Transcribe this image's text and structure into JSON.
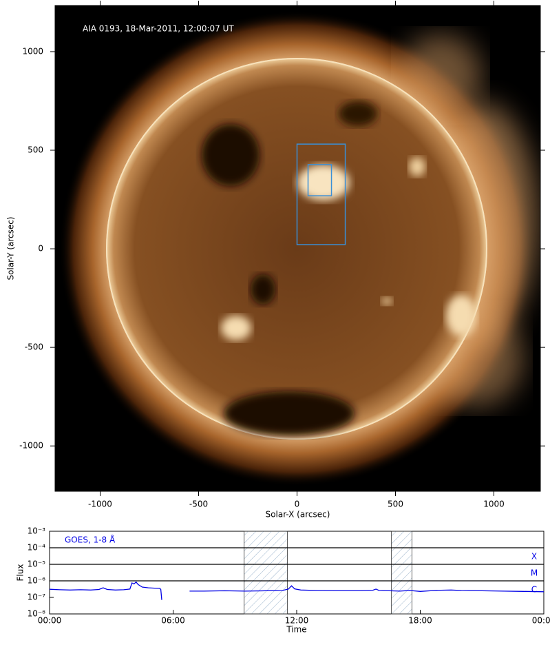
{
  "chart_data": [
    {
      "type": "image",
      "annotation": "AIA 0193, 18-Mar-2011, 12:00:07 UT",
      "xlabel": "Solar-X (arcsec)",
      "ylabel": "Solar-Y (arcsec)",
      "xlim": [
        -1229,
        1236
      ],
      "ylim": [
        -1230,
        1234
      ],
      "xticks": [
        -1000,
        -500,
        0,
        500,
        1000
      ],
      "yticks": [
        -1000,
        -500,
        0,
        500,
        1000
      ],
      "boxes": [
        {
          "x": [
            0,
            245
          ],
          "y": [
            21,
            531
          ],
          "color": "#3a8fd6"
        },
        {
          "x": [
            56,
            175
          ],
          "y": [
            269,
            427
          ],
          "color": "#3a8fd6"
        }
      ]
    },
    {
      "type": "line",
      "log_y": true,
      "xlabel": "Time",
      "ylabel": "Flux",
      "xlim": [
        0,
        24
      ],
      "ylim": [
        1e-08,
        0.001
      ],
      "xticks": [
        {
          "value": 0,
          "label": "00:00"
        },
        {
          "value": 6,
          "label": "06:00"
        },
        {
          "value": 12,
          "label": "12:00"
        },
        {
          "value": 18,
          "label": "18:00"
        },
        {
          "value": 24,
          "label": "00:00"
        }
      ],
      "yticks": [
        {
          "value": 1e-08,
          "label": "10⁻⁸"
        },
        {
          "value": 1e-07,
          "label": "10⁻⁷"
        },
        {
          "value": 1e-06,
          "label": "10⁻⁶"
        },
        {
          "value": 1e-05,
          "label": "10⁻⁵"
        },
        {
          "value": 0.0001,
          "label": "10⁻⁴"
        },
        {
          "value": 0.001,
          "label": "10⁻³"
        }
      ],
      "levels": [
        {
          "value": 1e-06,
          "label": "C"
        },
        {
          "value": 1e-05,
          "label": "M"
        },
        {
          "value": 0.0001,
          "label": "X"
        }
      ],
      "shaded": [
        [
          9.45,
          11.55
        ],
        [
          16.6,
          17.6
        ]
      ],
      "series": [
        {
          "name": "GOES, 1-8 Å",
          "color": "#0000e6",
          "x": [
            0,
            0.5,
            1,
            1.5,
            2,
            2.4,
            2.6,
            2.8,
            3.2,
            3.6,
            3.9,
            4.0,
            4.1,
            4.2,
            4.3,
            4.5,
            4.8,
            5.1,
            5.35,
            5.4,
            5.45,
            5.5,
            6.8,
            7.5,
            8.5,
            9.5,
            10.5,
            11.3,
            11.6,
            11.75,
            11.9,
            12.2,
            13,
            14,
            15,
            15.7,
            15.85,
            16,
            16.5,
            17,
            17.5,
            18,
            18.5,
            19,
            19.5,
            20,
            21,
            22,
            23,
            24
          ],
          "values": [
            3.1e-07,
            2.9e-07,
            2.8e-07,
            2.9e-07,
            2.8e-07,
            3e-07,
            3.8e-07,
            3e-07,
            2.8e-07,
            2.9e-07,
            3.2e-07,
            7.5e-07,
            6.5e-07,
            8.5e-07,
            6e-07,
            4.2e-07,
            3.8e-07,
            3.6e-07,
            3.5e-07,
            3e-07,
            7e-08,
            null,
            2.4e-07,
            2.4e-07,
            2.5e-07,
            2.4e-07,
            2.5e-07,
            2.6e-07,
            3.2e-07,
            5e-07,
            3.3e-07,
            2.8e-07,
            2.6e-07,
            2.5e-07,
            2.5e-07,
            2.7e-07,
            3.2e-07,
            2.6e-07,
            2.5e-07,
            2.4e-07,
            2.6e-07,
            2.3e-07,
            2.5e-07,
            2.7e-07,
            2.8e-07,
            2.6e-07,
            2.5e-07,
            2.4e-07,
            2.3e-07,
            2.2e-07
          ]
        }
      ]
    }
  ]
}
